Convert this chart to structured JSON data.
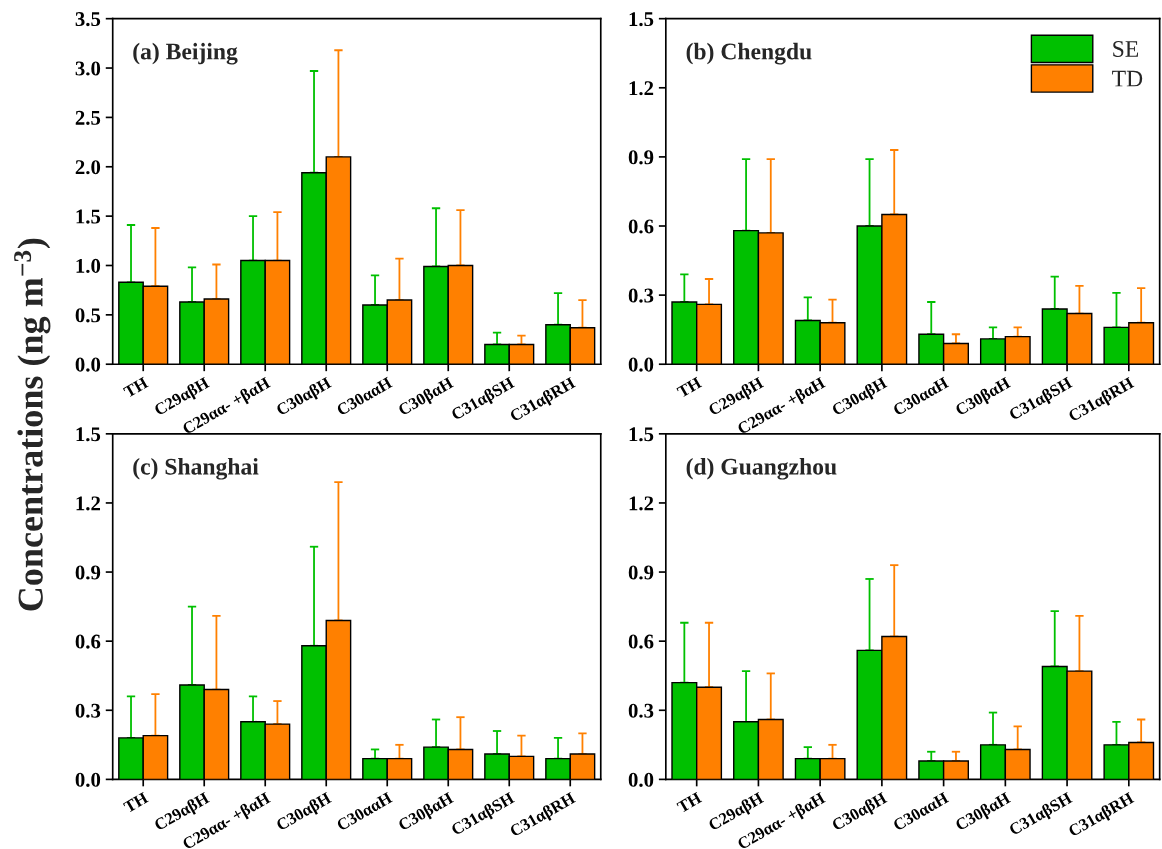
{
  "chart_data": [
    {
      "type": "bar",
      "title": "(a) Beijing",
      "ylabel": "Concentrations (ng m$^{−3}$)",
      "categories": [
        "TH",
        "C29αβH",
        "C29αα- +βαH",
        "C30αβH",
        "C30ααH",
        "C30βαH",
        "C31αβSH",
        "C31αβRH"
      ],
      "ylim": [
        0,
        3.5
      ],
      "yticks": [
        {
          "value": 0,
          "label": "0.0"
        },
        {
          "value": 0.5,
          "label": "0.5"
        },
        {
          "value": 1,
          "label": "1.0"
        },
        {
          "value": 1.5,
          "label": "1.5"
        },
        {
          "value": 2,
          "label": "2.0"
        },
        {
          "value": 2.5,
          "label": "2.5"
        },
        {
          "value": 3,
          "label": "3.0"
        },
        {
          "value": 3.5,
          "label": "3.5"
        }
      ],
      "series": [
        {
          "color": "#00c000",
          "values": [
            0.83,
            0.63,
            1.05,
            1.94,
            0.6,
            0.99,
            0.2,
            0.4
          ],
          "errors": [
            [
              0.83,
              1.41
            ],
            [
              0.63,
              0.98
            ],
            [
              1.05,
              1.5
            ],
            [
              1.94,
              2.97
            ],
            [
              0.6,
              0.9
            ],
            [
              0.99,
              1.58
            ],
            [
              0.2,
              0.32
            ],
            [
              0.4,
              0.72
            ]
          ]
        },
        {
          "color": "#ff8000",
          "values": [
            0.79,
            0.66,
            1.05,
            2.1,
            0.65,
            1.0,
            0.2,
            0.37
          ],
          "errors": [
            [
              0.79,
              1.38
            ],
            [
              0.66,
              1.01
            ],
            [
              1.05,
              1.54
            ],
            [
              2.1,
              3.18
            ],
            [
              0.65,
              1.07
            ],
            [
              1.0,
              1.56
            ],
            [
              0.2,
              0.29
            ],
            [
              0.37,
              0.65
            ]
          ]
        }
      ]
    },
    {
      "type": "bar",
      "title": "(b) Chengdu",
      "categories": [
        "TH",
        "C29αβH",
        "C29αα- +βαH",
        "C30αβH",
        "C30ααH",
        "C30βαH",
        "C31αβSH",
        "C31αβRH"
      ],
      "ylim": [
        0,
        1.5
      ],
      "yticks": [
        {
          "value": 0,
          "label": "0.0"
        },
        {
          "value": 0.3,
          "label": "0.3"
        },
        {
          "value": 0.6,
          "label": "0.6"
        },
        {
          "value": 0.9,
          "label": "0.9"
        },
        {
          "value": 1.2,
          "label": "1.2"
        },
        {
          "value": 1.5,
          "label": "1.5"
        }
      ],
      "legend": "top right",
      "series": [
        {
          "name": "SE",
          "color": "#00c000",
          "values": [
            0.27,
            0.58,
            0.19,
            0.6,
            0.13,
            0.11,
            0.24,
            0.16
          ],
          "errors": [
            [
              0.27,
              0.39
            ],
            [
              0.58,
              0.89
            ],
            [
              0.19,
              0.29
            ],
            [
              0.6,
              0.89
            ],
            [
              0.13,
              0.27
            ],
            [
              0.11,
              0.16
            ],
            [
              0.24,
              0.38
            ],
            [
              0.16,
              0.31
            ]
          ]
        },
        {
          "name": "TD",
          "color": "#ff8000",
          "values": [
            0.26,
            0.57,
            0.18,
            0.65,
            0.09,
            0.12,
            0.22,
            0.18
          ],
          "errors": [
            [
              0.26,
              0.37
            ],
            [
              0.57,
              0.89
            ],
            [
              0.18,
              0.28
            ],
            [
              0.65,
              0.93
            ],
            [
              0.09,
              0.13
            ],
            [
              0.12,
              0.16
            ],
            [
              0.22,
              0.34
            ],
            [
              0.18,
              0.33
            ]
          ]
        }
      ]
    },
    {
      "type": "bar",
      "title": "(c) Shanghai",
      "categories": [
        "TH",
        "C29αβH",
        "C29αα- +βαH",
        "C30αβH",
        "C30ααH",
        "C30βαH",
        "C31αβSH",
        "C31αβRH"
      ],
      "ylim": [
        0,
        1.5
      ],
      "yticks": [
        {
          "value": 0,
          "label": "0.0"
        },
        {
          "value": 0.3,
          "label": "0.3"
        },
        {
          "value": 0.6,
          "label": "0.6"
        },
        {
          "value": 0.9,
          "label": "0.9"
        },
        {
          "value": 1.2,
          "label": "1.2"
        },
        {
          "value": 1.5,
          "label": "1.5"
        }
      ],
      "series": [
        {
          "color": "#00c000",
          "values": [
            0.18,
            0.41,
            0.25,
            0.58,
            0.09,
            0.14,
            0.11,
            0.09
          ],
          "errors": [
            [
              0.18,
              0.36
            ],
            [
              0.41,
              0.75
            ],
            [
              0.25,
              0.36
            ],
            [
              0.58,
              1.01
            ],
            [
              0.09,
              0.13
            ],
            [
              0.14,
              0.26
            ],
            [
              0.11,
              0.21
            ],
            [
              0.09,
              0.18
            ]
          ]
        },
        {
          "color": "#ff8000",
          "values": [
            0.19,
            0.39,
            0.24,
            0.69,
            0.09,
            0.13,
            0.1,
            0.11
          ],
          "errors": [
            [
              0.19,
              0.37
            ],
            [
              0.39,
              0.71
            ],
            [
              0.24,
              0.34
            ],
            [
              0.69,
              1.29
            ],
            [
              0.09,
              0.15
            ],
            [
              0.13,
              0.27
            ],
            [
              0.1,
              0.19
            ],
            [
              0.11,
              0.2
            ]
          ]
        }
      ]
    },
    {
      "type": "bar",
      "title": "(d) Guangzhou",
      "categories": [
        "TH",
        "C29αβH",
        "C29αα- +βαH",
        "C30αβH",
        "C30ααH",
        "C30βαH",
        "C31αβSH",
        "C31αβRH"
      ],
      "ylim": [
        0,
        1.5
      ],
      "yticks": [
        {
          "value": 0,
          "label": "0.0"
        },
        {
          "value": 0.3,
          "label": "0.3"
        },
        {
          "value": 0.6,
          "label": "0.6"
        },
        {
          "value": 0.9,
          "label": "0.9"
        },
        {
          "value": 1.2,
          "label": "1.2"
        },
        {
          "value": 1.5,
          "label": "1.5"
        }
      ],
      "series": [
        {
          "color": "#00c000",
          "values": [
            0.42,
            0.25,
            0.09,
            0.56,
            0.08,
            0.15,
            0.49,
            0.15
          ],
          "errors": [
            [
              0.42,
              0.68
            ],
            [
              0.25,
              0.47
            ],
            [
              0.09,
              0.14
            ],
            [
              0.56,
              0.87
            ],
            [
              0.08,
              0.12
            ],
            [
              0.15,
              0.29
            ],
            [
              0.49,
              0.73
            ],
            [
              0.15,
              0.25
            ]
          ]
        },
        {
          "color": "#ff8000",
          "values": [
            0.4,
            0.26,
            0.09,
            0.62,
            0.08,
            0.13,
            0.47,
            0.16
          ],
          "errors": [
            [
              0.4,
              0.68
            ],
            [
              0.26,
              0.46
            ],
            [
              0.09,
              0.15
            ],
            [
              0.62,
              0.93
            ],
            [
              0.08,
              0.12
            ],
            [
              0.13,
              0.23
            ],
            [
              0.47,
              0.71
            ],
            [
              0.16,
              0.26
            ]
          ]
        }
      ]
    }
  ]
}
